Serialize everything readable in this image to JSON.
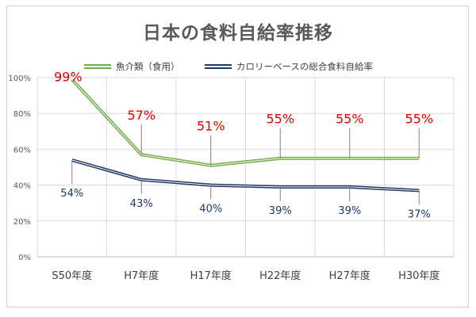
{
  "chart_data": {
    "type": "line",
    "title": "日本の食料自給率推移",
    "xlabel": "",
    "ylabel": "",
    "categories": [
      "S50年度",
      "H7年度",
      "H17年度",
      "H22年度",
      "H27年度",
      "H30年度"
    ],
    "y_ticks": [
      "0%",
      "20%",
      "40%",
      "60%",
      "80%",
      "100%"
    ],
    "ylim": [
      0,
      100
    ],
    "grid": true,
    "legend_position": "top",
    "series": [
      {
        "name": "魚介類（食用）",
        "values": [
          99,
          57,
          51,
          55,
          55,
          55
        ],
        "labels": [
          "99%",
          "57%",
          "51%",
          "55%",
          "55%",
          "55%"
        ],
        "color": "#70ad47",
        "label_color": "#e00000"
      },
      {
        "name": "カロリーベースの総合食料自給率",
        "values": [
          54,
          43,
          40,
          39,
          39,
          37
        ],
        "labels": [
          "54%",
          "43%",
          "40%",
          "39%",
          "39%",
          "37%"
        ],
        "color": "#1f3864",
        "label_color": "#1f3864"
      }
    ]
  }
}
